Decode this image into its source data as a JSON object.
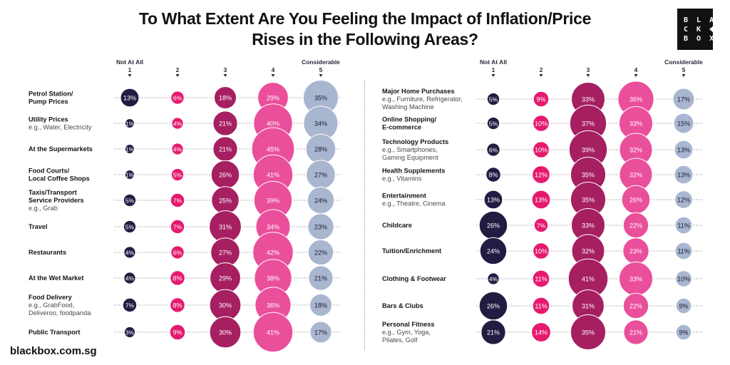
{
  "title": {
    "line1": "To What Extent Are You Feeling the Impact of Inflation/Price",
    "line2": "Rises in the Following Areas?"
  },
  "logo": {
    "lines": [
      "B L A",
      "C K",
      "B O X"
    ]
  },
  "footer": {
    "url": "blackbox.com.sg"
  },
  "colors": {
    "scale_1": "#221c42",
    "scale_2": "#e51a6f",
    "scale_3": "#a51f61",
    "scale_4": "#ea4f9b",
    "scale_5": "#a9b6d0",
    "text_dark": "#111111",
    "connector": "#9a9aa8"
  },
  "chart_data": [
    {
      "type": "scatter",
      "subtype": "bubble-matrix",
      "title": "To What Extent Are You Feeling the Impact of Inflation/Price Rises in the Following Areas?",
      "scale_labels": {
        "low": "Not At All",
        "high": "Considerable"
      },
      "categories": [
        "1",
        "2",
        "3",
        "4",
        "5"
      ],
      "unit": "%",
      "rows": [
        {
          "label": "Petrol Station/\nPump Prices",
          "sublabel": "",
          "values": [
            13,
            6,
            18,
            29,
            35
          ]
        },
        {
          "label": "Utility Prices",
          "sublabel": "e.g., Water, Electricity",
          "values": [
            1,
            4,
            21,
            40,
            34
          ]
        },
        {
          "label": "At the Supermarkets",
          "sublabel": "",
          "values": [
            1,
            4,
            21,
            45,
            28
          ]
        },
        {
          "label": "Food Courts/\nLocal Coffee Shops",
          "sublabel": "",
          "values": [
            1,
            5,
            26,
            41,
            27
          ]
        },
        {
          "label": "Taxis/Transport\nService Providers",
          "sublabel": "e.g., Grab",
          "values": [
            5,
            7,
            25,
            39,
            24
          ]
        },
        {
          "label": "Travel",
          "sublabel": "",
          "values": [
            5,
            7,
            31,
            34,
            23
          ]
        },
        {
          "label": "Restaurants",
          "sublabel": "",
          "values": [
            4,
            6,
            27,
            42,
            22
          ]
        },
        {
          "label": "At the Wet Market",
          "sublabel": "",
          "values": [
            4,
            8,
            29,
            38,
            21
          ]
        },
        {
          "label": "Food Delivery",
          "sublabel": "e.g., GrabFood,\nDeliveroo, foodpanda",
          "values": [
            7,
            8,
            30,
            36,
            18
          ]
        },
        {
          "label": "Public Transport",
          "sublabel": "",
          "values": [
            3,
            9,
            30,
            41,
            17
          ]
        }
      ]
    },
    {
      "type": "scatter",
      "subtype": "bubble-matrix",
      "title": "",
      "scale_labels": {
        "low": "Not At All",
        "high": "Considerable"
      },
      "categories": [
        "1",
        "2",
        "3",
        "4",
        "5"
      ],
      "unit": "%",
      "rows": [
        {
          "label": "Major Home Purchases",
          "sublabel": "e.g., Furniture, Refrigerator,\nWashing Machine",
          "values": [
            5,
            9,
            33,
            36,
            17
          ]
        },
        {
          "label": "Online Shopping/\nE-commerce",
          "sublabel": "",
          "values": [
            5,
            10,
            37,
            33,
            15
          ]
        },
        {
          "label": "Technology Products",
          "sublabel": "e.g., Smartphones,\nGaming Equipment",
          "values": [
            6,
            10,
            39,
            32,
            13
          ]
        },
        {
          "label": "Health Supplements",
          "sublabel": "e.g., Vitamins",
          "values": [
            8,
            12,
            35,
            32,
            13
          ]
        },
        {
          "label": "Entertainment",
          "sublabel": "e.g., Theatre, Cinema",
          "values": [
            13,
            13,
            35,
            26,
            12
          ]
        },
        {
          "label": "Childcare",
          "sublabel": "",
          "values": [
            26,
            7,
            33,
            22,
            11
          ]
        },
        {
          "label": "Tuition/Enrichment",
          "sublabel": "",
          "values": [
            24,
            10,
            32,
            23,
            11
          ]
        },
        {
          "label": "Clothing & Footwear",
          "sublabel": "",
          "values": [
            4,
            11,
            41,
            33,
            10
          ]
        },
        {
          "label": "Bars & Clubs",
          "sublabel": "",
          "values": [
            26,
            11,
            31,
            22,
            9
          ]
        },
        {
          "label": "Personal Fitness",
          "sublabel": "e.g., Gym, Yoga,\nPilates, Golf",
          "values": [
            21,
            14,
            35,
            21,
            9
          ]
        }
      ]
    }
  ]
}
